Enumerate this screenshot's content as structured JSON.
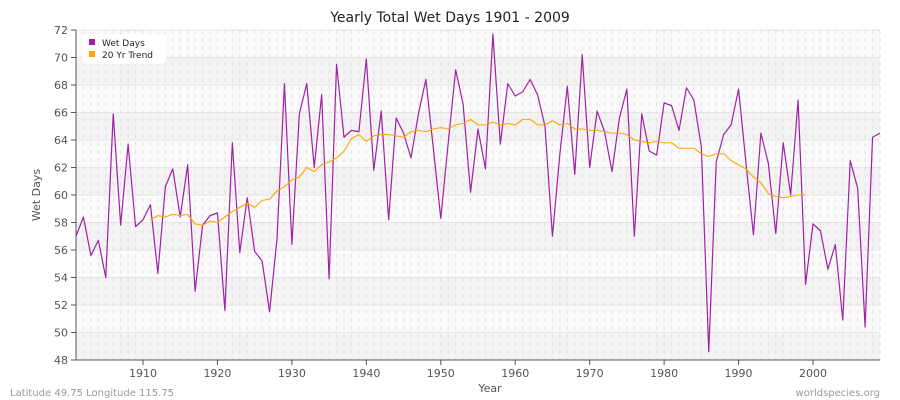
{
  "chart_data": {
    "type": "line",
    "title": "Yearly Total Wet Days 1901 - 2009",
    "xlabel": "Year",
    "ylabel": "Wet Days",
    "xlim": [
      1901,
      2009
    ],
    "ylim": [
      48,
      72
    ],
    "yticks": [
      48,
      50,
      52,
      54,
      56,
      58,
      60,
      62,
      64,
      66,
      68,
      70,
      72
    ],
    "xticks": [
      1910,
      1920,
      1930,
      1940,
      1950,
      1960,
      1970,
      1980,
      1990,
      2000
    ],
    "grid": true,
    "legend_position": "top-left",
    "x_start": 1901,
    "series": [
      {
        "name": "Wet Days",
        "color": "#a020a8",
        "values": [
          57.0,
          58.4,
          55.6,
          56.7,
          54.0,
          65.9,
          57.8,
          63.7,
          57.7,
          58.2,
          59.3,
          54.3,
          60.6,
          61.9,
          58.4,
          62.2,
          53.0,
          57.8,
          58.5,
          58.7,
          51.6,
          63.8,
          55.8,
          59.8,
          55.9,
          55.2,
          51.5,
          56.8,
          68.1,
          56.4,
          65.9,
          68.1,
          62.0,
          67.3,
          53.9,
          69.5,
          64.2,
          64.7,
          64.6,
          69.9,
          61.8,
          66.1,
          58.2,
          65.6,
          64.5,
          62.7,
          65.9,
          68.4,
          63.4,
          58.3,
          63.8,
          69.1,
          66.6,
          60.2,
          64.8,
          61.9,
          71.7,
          63.7,
          68.1,
          67.2,
          67.5,
          68.4,
          67.3,
          65.0,
          57.0,
          63.0,
          67.9,
          61.5,
          70.2,
          62.0,
          66.1,
          64.6,
          61.7,
          65.6,
          67.7,
          57.0,
          65.9,
          63.2,
          62.9,
          66.7,
          66.5,
          64.7,
          67.8,
          66.9,
          63.5,
          48.6,
          62.4,
          64.4,
          65.1,
          67.7,
          62.3,
          57.1,
          64.5,
          62.3,
          57.2,
          63.8,
          60.0,
          66.9,
          53.5,
          57.9,
          57.4,
          54.6,
          56.4,
          50.9,
          62.5,
          60.5,
          50.4,
          64.2,
          64.5
        ]
      },
      {
        "name": "20 Yr Trend",
        "color": "#ffa500",
        "values": [
          null,
          null,
          null,
          null,
          null,
          null,
          null,
          null,
          null,
          null,
          58.2,
          58.5,
          58.4,
          58.6,
          58.5,
          58.6,
          57.9,
          57.8,
          58.1,
          58.0,
          58.4,
          58.8,
          59.1,
          59.4,
          59.1,
          59.6,
          59.7,
          60.3,
          60.6,
          61.1,
          61.3,
          62.0,
          61.7,
          62.2,
          62.4,
          62.7,
          63.2,
          64.1,
          64.4,
          63.9,
          64.3,
          64.4,
          64.4,
          64.3,
          64.2,
          64.6,
          64.7,
          64.6,
          64.8,
          64.9,
          64.8,
          65.1,
          65.2,
          65.5,
          65.1,
          65.1,
          65.3,
          65.1,
          65.2,
          65.1,
          65.5,
          65.5,
          65.1,
          65.1,
          65.4,
          65.1,
          65.2,
          64.8,
          64.8,
          64.7,
          64.7,
          64.6,
          64.5,
          64.5,
          64.4,
          64.0,
          63.9,
          63.8,
          63.9,
          63.8,
          63.8,
          63.4,
          63.4,
          63.4,
          63.0,
          62.8,
          63.0,
          63.0,
          62.5,
          62.2,
          61.9,
          61.3,
          60.9,
          60.1,
          59.9,
          59.8,
          59.9,
          60.0,
          60.0,
          null,
          null,
          null,
          null,
          null,
          null,
          null,
          null,
          null,
          null
        ]
      }
    ]
  },
  "footer": {
    "location": "Latitude 49.75 Longitude 115.75",
    "site": "worldspecies.org"
  },
  "colors": {
    "band_dark": "#f3f3f3",
    "band_light": "#fafafa",
    "axis": "#555555"
  }
}
